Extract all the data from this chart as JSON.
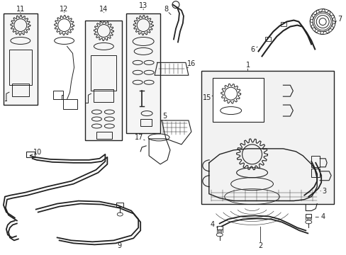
{
  "bg_color": "#ffffff",
  "lc": "#222222",
  "fig_width": 4.89,
  "fig_height": 3.6,
  "dpi": 100
}
